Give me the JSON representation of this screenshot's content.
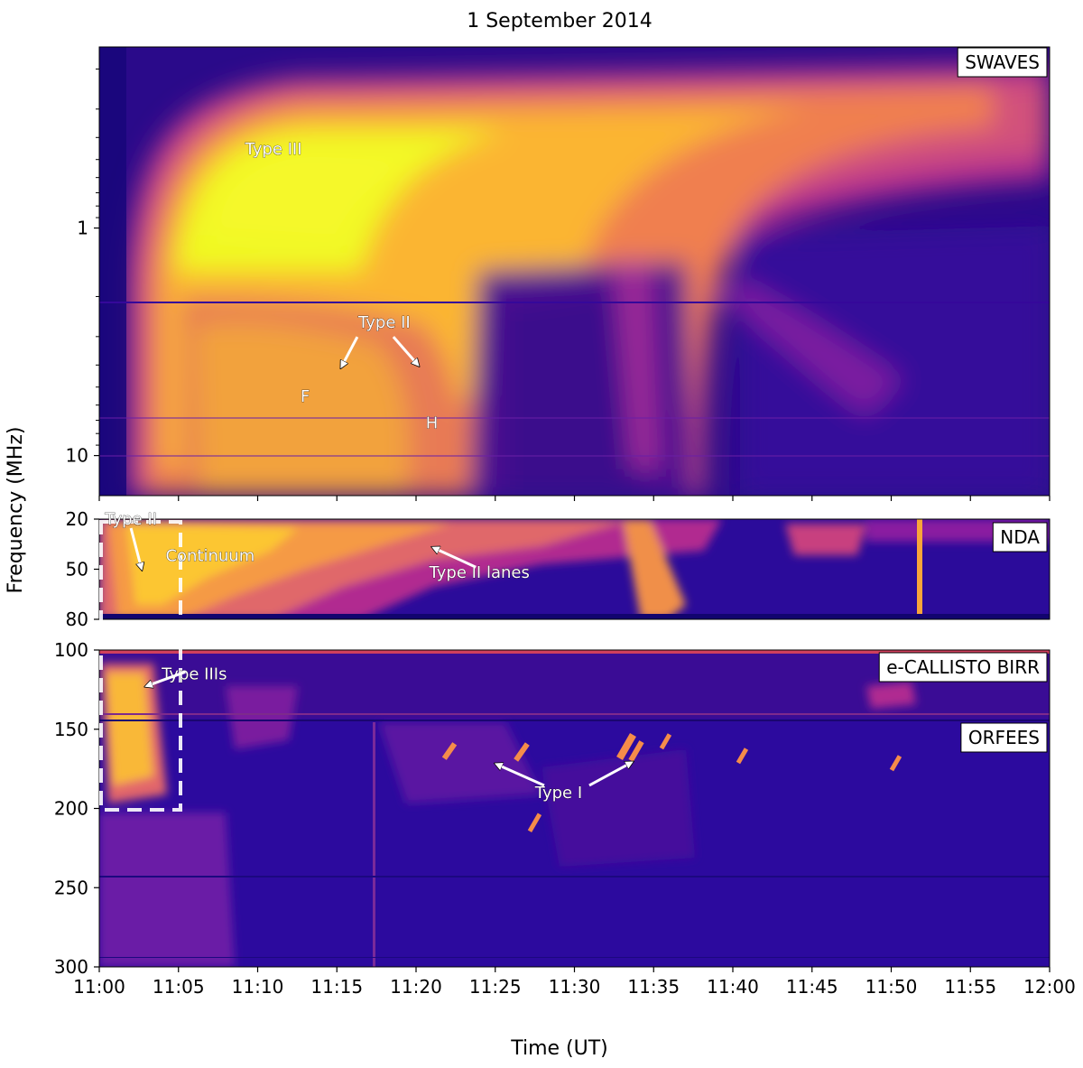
{
  "chart_data": {
    "type": "heatmap",
    "title": "1 September 2014",
    "xlabel": "Time (UT)",
    "ylabel": "Frequency (MHz)",
    "x_ticks": [
      "11:00",
      "11:05",
      "11:10",
      "11:15",
      "11:20",
      "11:25",
      "11:30",
      "11:35",
      "11:40",
      "11:45",
      "11:50",
      "11:55",
      "12:00"
    ],
    "xlim": [
      "11:00",
      "12:00"
    ],
    "colormap": "plasma",
    "panels": [
      {
        "instrument": "SWAVES",
        "yscale": "log",
        "ylim": [
          15,
          0.16
        ],
        "y_ticks": [
          "1",
          "10"
        ],
        "annotations": [
          {
            "text": "Type III",
            "time": "11:11",
            "freq": 0.45
          },
          {
            "text": "Type II",
            "time": "11:18",
            "freq": 2.6
          },
          {
            "text": "F",
            "time": "11:13",
            "freq": 5.5
          },
          {
            "text": "H",
            "time": "11:21",
            "freq": 7.2
          }
        ]
      },
      {
        "instrument": "NDA",
        "yscale": "linear",
        "ylim": [
          80,
          20
        ],
        "y_ticks": [
          "20",
          "50",
          "80"
        ],
        "annotations": [
          {
            "text": "Type II",
            "time": "11:02",
            "freq": 20
          },
          {
            "text": "Continuum",
            "time": "11:07",
            "freq": 42
          },
          {
            "text": "Type II lanes",
            "time": "11:24",
            "freq": 52
          }
        ]
      },
      {
        "instrument": "e-CALLISTO BIRR",
        "yscale": "linear",
        "ylim": [
          300,
          100
        ],
        "y_ticks": [
          "100",
          "150",
          "200",
          "250",
          "300"
        ],
        "annotations": [
          {
            "text": "Type IIIs",
            "time": "11:06",
            "freq": 115
          },
          {
            "text": "Type I",
            "time": "11:29",
            "freq": 190
          }
        ]
      },
      {
        "instrument": "ORFEES",
        "yscale": "linear",
        "ylim": [
          300,
          140
        ],
        "y_ticks": [],
        "annotations": []
      }
    ],
    "highlight_box": {
      "time_range": [
        "11:00",
        "11:05"
      ],
      "freq_range": [
        20,
        200
      ],
      "style": "dashed"
    }
  }
}
